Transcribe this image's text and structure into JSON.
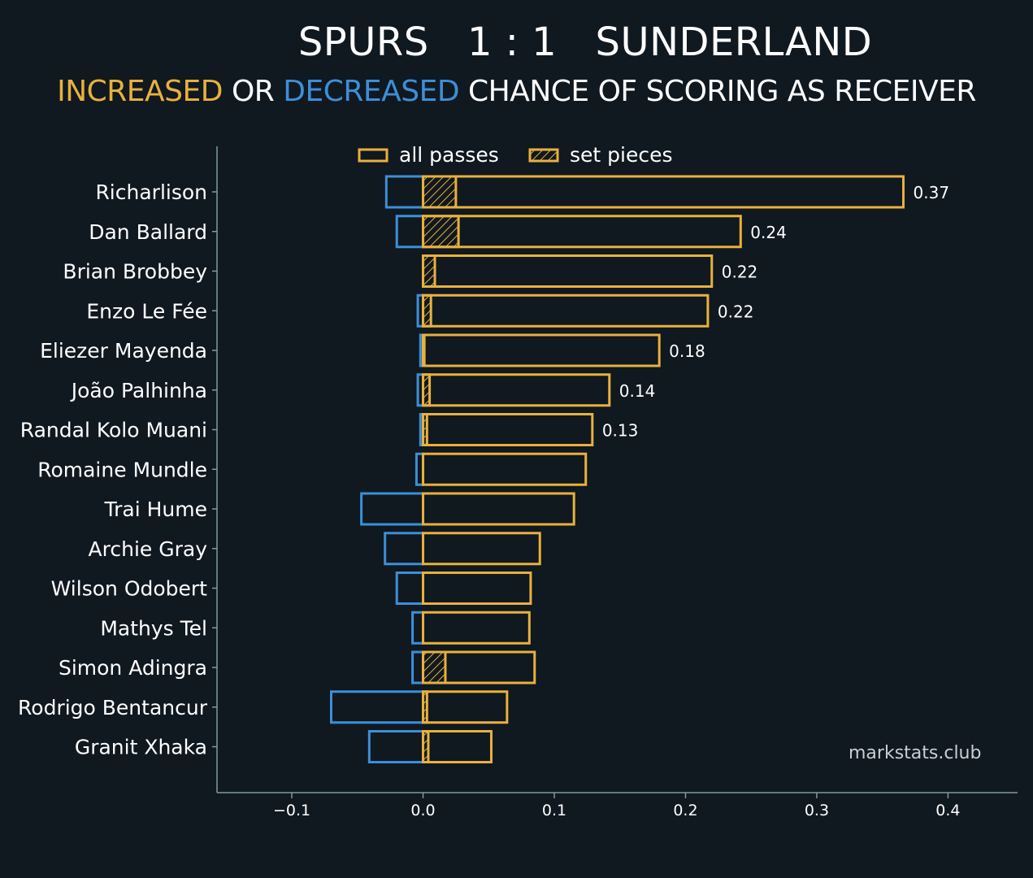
{
  "title": "SPURS   1 : 1   SUNDERLAND",
  "subtitle": {
    "increased": "INCREASED",
    "or": " OR ",
    "decreased": "DECREASED",
    "rest": " CHANCE OF SCORING AS RECEIVER"
  },
  "watermark": "markstats.club",
  "colors": {
    "background": "#101820",
    "increased": "#e8b13c",
    "decreased": "#3c8fd8",
    "axis": "#7f9aa3",
    "text": "#ffffff"
  },
  "chart_data": {
    "type": "bar",
    "orientation": "horizontal",
    "xlim": [
      -0.157,
      0.453
    ],
    "xticks": [
      -0.1,
      0.0,
      0.1,
      0.2,
      0.3,
      0.4
    ],
    "xtick_labels": [
      "−0.1",
      "0.0",
      "0.1",
      "0.2",
      "0.3",
      "0.4"
    ],
    "legend": {
      "placement": "top-center",
      "entries": [
        "all passes",
        "set pieces"
      ]
    },
    "categories": [
      "Richarlison",
      "Dan Ballard",
      "Brian Brobbey",
      "Enzo Le Fée",
      "Eliezer Mayenda",
      "João Palhinha",
      "Randal Kolo Muani",
      "Romaine Mundle",
      "Trai Hume",
      "Archie Gray",
      "Wilson Odobert",
      "Mathys Tel",
      "Simon Adingra",
      "Rodrigo Bentancur",
      "Granit Xhaka"
    ],
    "series": [
      {
        "name": "all passes",
        "positive": [
          0.366,
          0.242,
          0.22,
          0.217,
          0.18,
          0.142,
          0.129,
          0.124,
          0.115,
          0.089,
          0.082,
          0.081,
          0.085,
          0.064,
          0.052
        ],
        "negative": [
          -0.028,
          -0.02,
          0.0,
          -0.004,
          -0.002,
          -0.004,
          -0.002,
          -0.005,
          -0.047,
          -0.029,
          -0.02,
          -0.008,
          -0.008,
          -0.07,
          -0.041
        ]
      },
      {
        "name": "set pieces",
        "positive": [
          0.025,
          0.027,
          0.009,
          0.006,
          0.001,
          0.005,
          0.003,
          0.0,
          0.0,
          0.0,
          0.0,
          0.0,
          0.017,
          0.003,
          0.004
        ]
      }
    ],
    "value_labels": [
      "0.37",
      "0.24",
      "0.22",
      "0.22",
      "0.18",
      "0.14",
      "0.13",
      "",
      "",
      "",
      "",
      "",
      "",
      "",
      ""
    ]
  }
}
